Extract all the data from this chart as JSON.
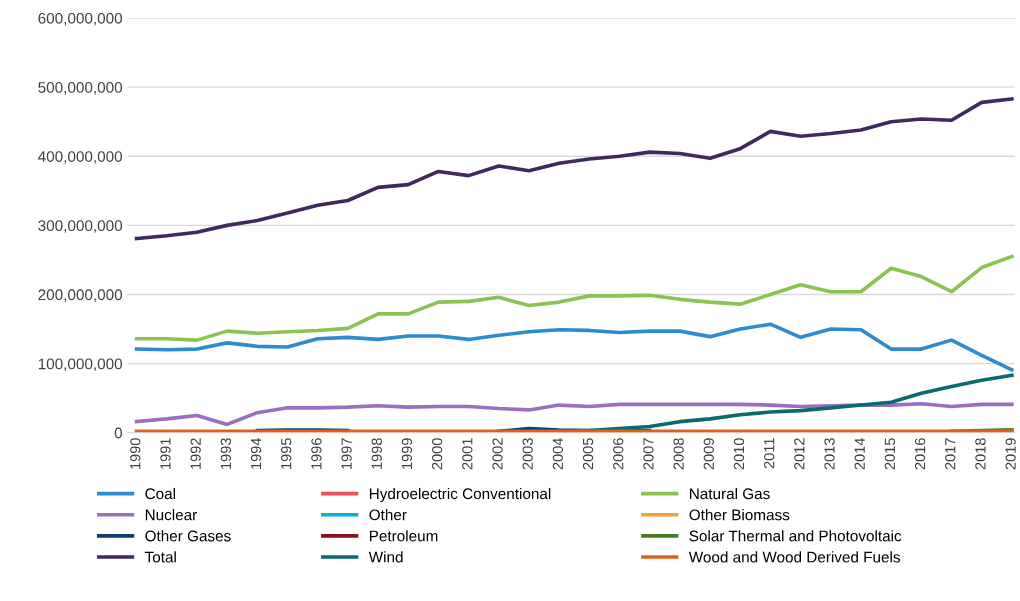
{
  "chart_data": {
    "type": "line",
    "categories": [
      "1990",
      "1991",
      "1992",
      "1993",
      "1994",
      "1995",
      "1996",
      "1997",
      "1998",
      "1999",
      "2000",
      "2001",
      "2002",
      "2003",
      "2004",
      "2005",
      "2006",
      "2007",
      "2008",
      "2009",
      "2010",
      "2011",
      "2012",
      "2013",
      "2014",
      "2015",
      "2016",
      "2017",
      "2018",
      "2019"
    ],
    "series": [
      {
        "name": "Coal",
        "color": "#2e8bd0",
        "values": [
          121000000,
          120000000,
          121000000,
          130000000,
          125000000,
          124000000,
          136000000,
          138000000,
          135000000,
          140000000,
          140000000,
          135000000,
          141000000,
          146000000,
          149000000,
          148000000,
          145000000,
          147000000,
          147000000,
          139000000,
          150000000,
          157000000,
          138000000,
          150000000,
          149000000,
          121000000,
          121000000,
          134000000,
          112000000,
          91000000
        ]
      },
      {
        "name": "Hydroelectric Conventional",
        "color": "#e8505b",
        "values": [
          null,
          null,
          null,
          null,
          null,
          null,
          null,
          null,
          null,
          null,
          null,
          null,
          null,
          null,
          null,
          null,
          null,
          null,
          null,
          null,
          null,
          null,
          null,
          null,
          null,
          null,
          null,
          null,
          null,
          null
        ]
      },
      {
        "name": "Natural Gas",
        "color": "#8dc153",
        "values": [
          136000000,
          136000000,
          134000000,
          147000000,
          144000000,
          146000000,
          148000000,
          151000000,
          172000000,
          172000000,
          189000000,
          190000000,
          196000000,
          184000000,
          189000000,
          198000000,
          198000000,
          199000000,
          193000000,
          189000000,
          186000000,
          200000000,
          214000000,
          204000000,
          204000000,
          238000000,
          226000000,
          204000000,
          239000000,
          255000000
        ]
      },
      {
        "name": "Nuclear",
        "color": "#9b6fc0",
        "values": [
          16000000,
          20000000,
          25000000,
          12000000,
          29000000,
          36000000,
          36000000,
          37000000,
          39000000,
          37000000,
          38000000,
          38000000,
          35000000,
          33000000,
          40000000,
          38000000,
          41000000,
          41000000,
          41000000,
          41000000,
          41000000,
          40000000,
          38000000,
          39000000,
          40000000,
          40000000,
          42000000,
          38000000,
          41000000,
          41000000
        ]
      },
      {
        "name": "Other",
        "color": "#00b3d8",
        "values": [
          null,
          null,
          null,
          null,
          null,
          null,
          null,
          null,
          null,
          null,
          null,
          null,
          null,
          null,
          null,
          null,
          null,
          null,
          null,
          null,
          null,
          null,
          null,
          null,
          null,
          null,
          null,
          null,
          null,
          null
        ]
      },
      {
        "name": "Other Biomass",
        "color": "#f5a030",
        "values": [
          null,
          null,
          null,
          null,
          null,
          null,
          null,
          null,
          null,
          null,
          null,
          null,
          null,
          null,
          null,
          null,
          null,
          null,
          null,
          null,
          null,
          null,
          null,
          null,
          null,
          null,
          null,
          null,
          null,
          null
        ]
      },
      {
        "name": "Other Gases",
        "color": "#0d3c6e",
        "values": [
          null,
          null,
          null,
          null,
          3000000,
          4000000,
          4000000,
          3000000,
          null,
          null,
          null,
          null,
          2000000,
          6000000,
          4000000,
          3000000,
          3000000,
          3000000,
          null,
          null,
          null,
          null,
          null,
          null,
          null,
          null,
          null,
          null,
          null,
          null
        ]
      },
      {
        "name": "Petroleum",
        "color": "#8b0f1e",
        "values": [
          null,
          null,
          null,
          null,
          null,
          null,
          null,
          null,
          null,
          null,
          null,
          null,
          null,
          null,
          null,
          null,
          null,
          null,
          null,
          null,
          null,
          null,
          null,
          null,
          null,
          null,
          null,
          null,
          null,
          null
        ]
      },
      {
        "name": "Solar Thermal and Photovoltaic",
        "color": "#4a7a28",
        "values": [
          null,
          null,
          null,
          null,
          null,
          null,
          null,
          null,
          null,
          null,
          null,
          null,
          null,
          null,
          null,
          null,
          null,
          null,
          null,
          null,
          null,
          null,
          null,
          null,
          null,
          null,
          null,
          2000000,
          3000000,
          4000000
        ]
      },
      {
        "name": "Total",
        "color": "#3f2a5e",
        "values": [
          281000000,
          285000000,
          290000000,
          300000000,
          307000000,
          318000000,
          329000000,
          336000000,
          355000000,
          359000000,
          378000000,
          372000000,
          386000000,
          379000000,
          390000000,
          396000000,
          400000000,
          406000000,
          404000000,
          397000000,
          411000000,
          436000000,
          429000000,
          433000000,
          438000000,
          450000000,
          454000000,
          452000000,
          478000000,
          483000000
        ]
      },
      {
        "name": "Wind",
        "color": "#0a6b6e",
        "values": [
          null,
          null,
          null,
          null,
          null,
          null,
          null,
          null,
          null,
          null,
          null,
          null,
          null,
          null,
          2000000,
          3000000,
          6000000,
          9000000,
          16000000,
          20000000,
          26000000,
          30000000,
          32000000,
          36000000,
          40000000,
          44000000,
          57000000,
          67000000,
          76000000,
          83000000
        ]
      },
      {
        "name": "Wood and Wood Derived Fuels",
        "color": "#e0601a",
        "values": [
          2000000,
          2000000,
          2000000,
          2000000,
          2000000,
          2000000,
          2000000,
          2000000,
          2000000,
          2000000,
          2000000,
          2000000,
          2000000,
          2000000,
          2000000,
          2000000,
          2000000,
          2000000,
          2000000,
          2000000,
          2000000,
          2000000,
          2000000,
          2000000,
          2000000,
          2000000,
          2000000,
          2000000,
          2000000,
          2000000
        ]
      }
    ],
    "ylim": [
      0,
      600000000
    ],
    "yticks": [
      {
        "value": 0,
        "label": "0"
      },
      {
        "value": 100000000,
        "label": "100,000,000"
      },
      {
        "value": 200000000,
        "label": "200,000,000"
      },
      {
        "value": 300000000,
        "label": "300,000,000"
      },
      {
        "value": 400000000,
        "label": "400,000,000"
      },
      {
        "value": 500000000,
        "label": "500,000,000"
      },
      {
        "value": 600000000,
        "label": "600,000,000"
      }
    ],
    "grid": "y",
    "legend": "bottom",
    "marker": "none",
    "line_style": "solid"
  }
}
